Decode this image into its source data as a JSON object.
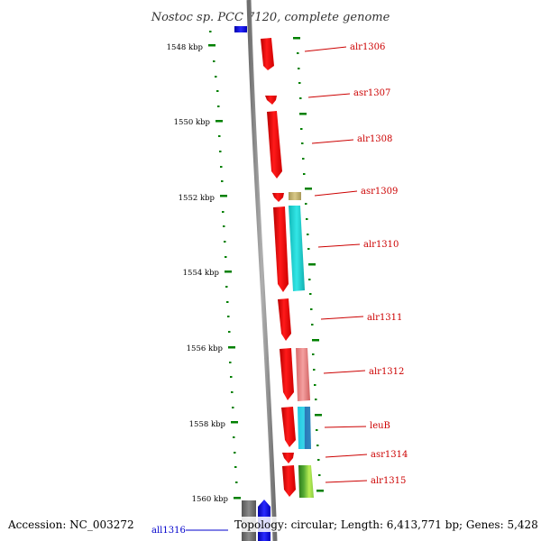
{
  "header": {
    "title": "Nostoc sp. PCC 7120, complete genome"
  },
  "footer": {
    "accession": "Accession: NC_003272",
    "topology": "Topology: circular; Length: 6,413,771 bp; Genes: 5,428"
  },
  "colors": {
    "genome_line": "#888888",
    "tick": "#008000",
    "gene_label": "#cc0000",
    "gene_arrow": "#ff0000",
    "gene_label_offscreen": "#0000cc"
  },
  "ruler": {
    "unit": "kbp",
    "ticks": [
      "1548 kbp",
      "1550 kbp",
      "1552 kbp",
      "1554 kbp",
      "1556 kbp",
      "1558 kbp",
      "1560 kbp"
    ]
  },
  "genes": [
    {
      "name": "alr1306",
      "arrow": "red-arrow",
      "annotation_color": null
    },
    {
      "name": "asr1307",
      "arrow": "red-arrow",
      "annotation_color": null
    },
    {
      "name": "alr1308",
      "arrow": "red-arrow",
      "annotation_color": null
    },
    {
      "name": "asr1309",
      "arrow": "red-arrow",
      "annotation_color": "#c8b870"
    },
    {
      "name": "alr1310",
      "arrow": "red-arrow",
      "annotation_color": "#22d8d8"
    },
    {
      "name": "alr1311",
      "arrow": "red-arrow",
      "annotation_color": null
    },
    {
      "name": "alr1312",
      "arrow": "red-arrow",
      "annotation_color": "#ee8888"
    },
    {
      "name": "leuB",
      "arrow": "red-arrow",
      "annotation_color": "#22d8e8"
    },
    {
      "name": "asr1314",
      "arrow": "red-arrow",
      "annotation_color": null
    },
    {
      "name": "alr1315",
      "arrow": "red-arrow",
      "annotation_color": "#66bb33"
    }
  ],
  "bottom_gene": {
    "name": "all1316",
    "arrow": "blue-arrow"
  }
}
